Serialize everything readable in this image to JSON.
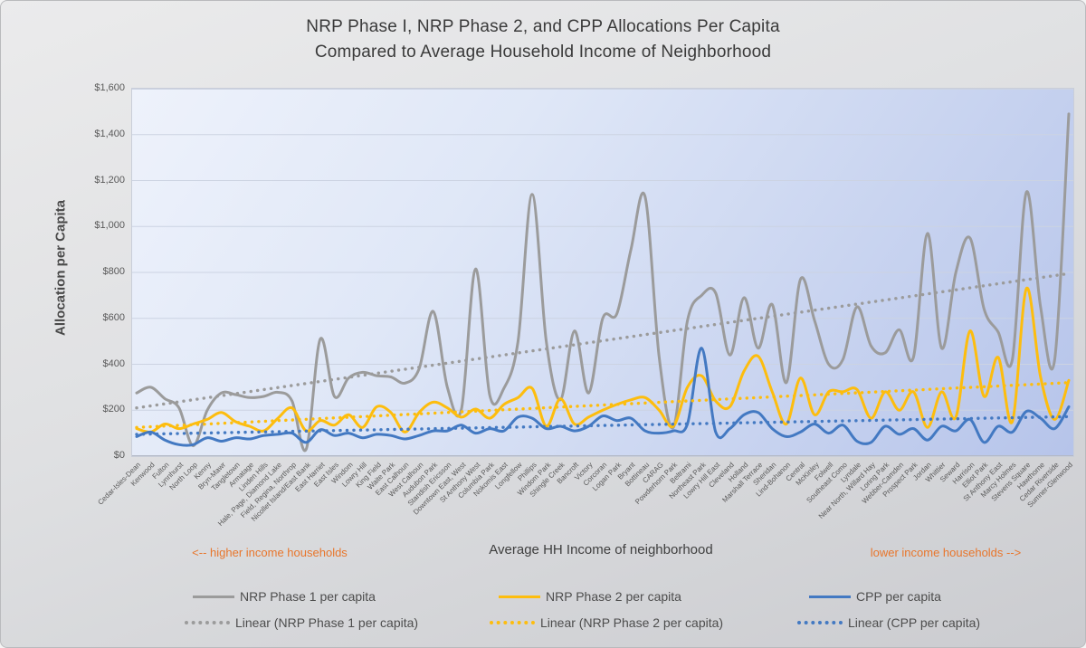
{
  "title": {
    "line1": "NRP Phase I, NRP Phase 2, and CPP Allocations Per Capita",
    "line2": "Compared to Average Household Income of Neighborhood"
  },
  "y_axis": {
    "title": "Allocation per Capita",
    "ticks": [
      "$0",
      "$200",
      "$400",
      "$600",
      "$800",
      "$1,000",
      "$1,200",
      "$1,400",
      "$1,600"
    ]
  },
  "x_axis": {
    "title": "Average HH Income of neighborhood",
    "left_annotation": "<-- higher income households",
    "right_annotation": "lower income households -->"
  },
  "colors": {
    "gray": "#9b9b9b",
    "gold": "#fdbd0e",
    "blue": "#4379c2",
    "orange_annotation": "#e8762c",
    "gridline": "#ccd3e2",
    "axis_line": "#b3b9c6"
  },
  "legend": [
    {
      "label": "NRP Phase 1 per capita",
      "color": "#9b9b9b",
      "dotted": false
    },
    {
      "label": "NRP Phase 2 per capita",
      "color": "#fdbd0e",
      "dotted": false
    },
    {
      "label": "CPP per capita",
      "color": "#4379c2",
      "dotted": false
    },
    {
      "label": "Linear (NRP Phase 1 per capita)",
      "color": "#9b9b9b",
      "dotted": true
    },
    {
      "label": "Linear (NRP Phase 2 per capita)",
      "color": "#fdbd0e",
      "dotted": true
    },
    {
      "label": "Linear (CPP per capita)",
      "color": "#4379c2",
      "dotted": true
    }
  ],
  "chart_data": {
    "type": "line",
    "smooth": true,
    "grid": "horizontal",
    "ylim": [
      0,
      1600
    ],
    "ytick_step": 200,
    "legend_position": "bottom",
    "categories": [
      "Cedar-Isles-Dean",
      "Kenwood",
      "Fulton",
      "Lynnhurst",
      "North Loop",
      "Kenny",
      "Bryn-Mawr",
      "Tangletown",
      "Armatage",
      "Linden Hills",
      "Hale, Page, Diamond Lake",
      "Field, Regina, Northrop",
      "Nicollet Island/East Bank",
      "East Harriet",
      "East Isles",
      "Windom",
      "Lowry Hill",
      "King Field",
      "Waite Park",
      "East Calhoun",
      "West Calhoun",
      "Audubon Park",
      "Standish Ericsson",
      "Downtown East, West",
      "St Anthony West",
      "Columbia Park",
      "Nokomis East",
      "Longfellow",
      "Phillips",
      "Windom Park",
      "Shingle Creek",
      "Bancroft",
      "Victory",
      "Corcoran",
      "Logan Park",
      "Bryant",
      "Bottineau",
      "CARAG",
      "Powderhorn Park",
      "Beltrami",
      "Northeast Park",
      "Lowry Hill East",
      "Cleveland",
      "Holland",
      "Marshall Terrace",
      "Sheridan",
      "Lind-Bohanon",
      "Central",
      "McKinley",
      "Folwell",
      "Southeast Como",
      "Lyndale",
      "Near North, Willard Hay",
      "Loring Park",
      "Webber-Camden",
      "Prospect Park",
      "Jordan",
      "Whittier",
      "Seward",
      "Harrison",
      "Elliot Park",
      "St Anthony East",
      "Marcy Holmes",
      "Stevens Square",
      "Hawthorne",
      "Cedar Riverside",
      "Sumner-Glenwood"
    ],
    "series": [
      {
        "name": "NRP Phase 1 per capita",
        "color": "#9b9b9b",
        "style": "solid",
        "values": [
          275,
          300,
          250,
          210,
          45,
          200,
          275,
          268,
          255,
          260,
          278,
          240,
          30,
          510,
          260,
          340,
          365,
          350,
          345,
          318,
          380,
          630,
          300,
          205,
          815,
          265,
          295,
          500,
          1140,
          500,
          245,
          545,
          275,
          600,
          620,
          900,
          1130,
          430,
          125,
          590,
          700,
          710,
          440,
          690,
          470,
          660,
          320,
          770,
          590,
          400,
          420,
          650,
          480,
          450,
          550,
          430,
          970,
          470,
          800,
          950,
          640,
          540,
          420,
          1150,
          650,
          420,
          1490
        ]
      },
      {
        "name": "NRP Phase 2 per capita",
        "color": "#fdbd0e",
        "style": "solid",
        "values": [
          120,
          105,
          140,
          120,
          140,
          160,
          190,
          150,
          130,
          110,
          165,
          210,
          110,
          155,
          135,
          180,
          125,
          215,
          190,
          105,
          190,
          235,
          210,
          170,
          205,
          165,
          225,
          255,
          295,
          130,
          250,
          140,
          170,
          200,
          225,
          245,
          255,
          200,
          130,
          300,
          350,
          240,
          215,
          370,
          435,
          280,
          140,
          340,
          180,
          280,
          280,
          290,
          165,
          280,
          200,
          280,
          125,
          280,
          170,
          545,
          260,
          430,
          150,
          730,
          345,
          160,
          330
        ]
      },
      {
        "name": "CPP per capita",
        "color": "#4379c2",
        "style": "solid",
        "values": [
          85,
          105,
          70,
          50,
          50,
          80,
          65,
          80,
          75,
          90,
          95,
          100,
          60,
          115,
          90,
          100,
          80,
          95,
          90,
          75,
          90,
          110,
          110,
          135,
          100,
          120,
          110,
          170,
          165,
          120,
          130,
          110,
          130,
          175,
          155,
          165,
          110,
          100,
          110,
          140,
          470,
          105,
          120,
          180,
          190,
          120,
          85,
          105,
          140,
          100,
          135,
          65,
          60,
          130,
          95,
          120,
          70,
          130,
          110,
          160,
          60,
          130,
          105,
          195,
          165,
          120,
          215
        ]
      },
      {
        "name": "Linear (NRP Phase 1 per capita)",
        "color": "#9b9b9b",
        "style": "dotted",
        "trend": [
          210,
          795
        ]
      },
      {
        "name": "Linear (NRP Phase 2 per capita)",
        "color": "#fdbd0e",
        "style": "dotted",
        "trend": [
          125,
          320
        ]
      },
      {
        "name": "Linear (CPP per capita)",
        "color": "#4379c2",
        "style": "dotted",
        "trend": [
          95,
          172
        ]
      }
    ]
  }
}
